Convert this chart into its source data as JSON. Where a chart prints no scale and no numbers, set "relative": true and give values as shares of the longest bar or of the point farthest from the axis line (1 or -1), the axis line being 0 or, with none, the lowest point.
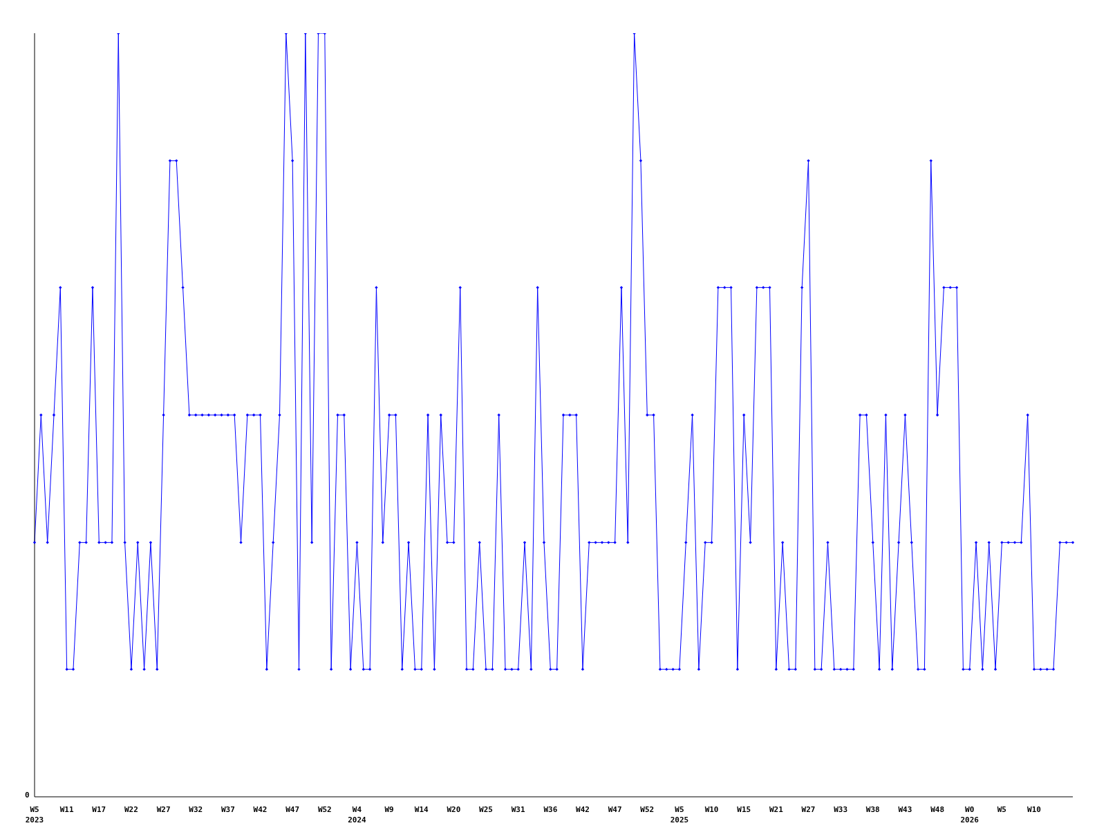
{
  "chart_data": {
    "type": "line",
    "relative": true,
    "annotations": [
      "0"
    ],
    "marker": "diamond",
    "line_style": "solid",
    "grid": false,
    "legend": false,
    "categories": [
      "W5\n2023",
      null,
      null,
      null,
      null,
      "W11",
      null,
      null,
      null,
      null,
      "W17",
      null,
      null,
      null,
      null,
      "W22",
      null,
      null,
      null,
      null,
      "W27",
      null,
      null,
      null,
      null,
      "W32",
      null,
      null,
      null,
      null,
      "W37",
      null,
      null,
      null,
      null,
      "W42",
      null,
      null,
      null,
      null,
      "W47",
      null,
      null,
      null,
      null,
      "W52",
      null,
      null,
      null,
      null,
      "W4\n2024",
      null,
      null,
      null,
      null,
      "W9",
      null,
      null,
      null,
      null,
      "W14",
      null,
      null,
      null,
      null,
      "W20",
      null,
      null,
      null,
      null,
      "W25",
      null,
      null,
      null,
      null,
      "W31",
      null,
      null,
      null,
      null,
      "W36",
      null,
      null,
      null,
      null,
      "W42",
      null,
      null,
      null,
      null,
      "W47",
      null,
      null,
      null,
      null,
      "W52",
      null,
      null,
      null,
      null,
      "W5\n2025",
      null,
      null,
      null,
      null,
      "W10",
      null,
      null,
      null,
      null,
      "W15",
      null,
      null,
      null,
      null,
      "W21",
      null,
      null,
      null,
      null,
      "W27",
      null,
      null,
      null,
      null,
      "W33",
      null,
      null,
      null,
      null,
      "W38",
      null,
      null,
      null,
      null,
      "W43",
      null,
      null,
      null,
      null,
      "W48",
      null,
      null,
      null,
      null,
      "W0\n2026",
      null,
      null,
      null,
      null,
      "W5",
      null,
      null,
      null,
      null,
      "W10",
      null,
      null,
      null,
      null,
      null,
      null
    ],
    "series": [
      {
        "color": "#0000ff",
        "values": [
          0.333,
          0.5,
          0.333,
          0.5,
          0.667,
          0.167,
          0.167,
          0.333,
          0.333,
          0.667,
          0.333,
          0.333,
          0.333,
          1,
          0.333,
          0.167,
          0.333,
          0.167,
          0.333,
          0.167,
          0.5,
          0.833,
          0.833,
          0.667,
          0.5,
          0.5,
          0.5,
          0.5,
          0.5,
          0.5,
          0.5,
          0.5,
          0.333,
          0.5,
          0.5,
          0.5,
          0.167,
          0.333,
          0.5,
          1,
          0.833,
          0.167,
          1,
          0.333,
          1,
          1,
          0.167,
          0.5,
          0.5,
          0.167,
          0.333,
          0.167,
          0.167,
          0.667,
          0.333,
          0.5,
          0.5,
          0.167,
          0.333,
          0.167,
          0.167,
          0.5,
          0.167,
          0.5,
          0.333,
          0.333,
          0.667,
          0.167,
          0.167,
          0.333,
          0.167,
          0.167,
          0.5,
          0.167,
          0.167,
          0.167,
          0.333,
          0.167,
          0.667,
          0.333,
          0.167,
          0.167,
          0.5,
          0.5,
          0.5,
          0.167,
          0.333,
          0.333,
          0.333,
          0.333,
          0.333,
          0.667,
          0.333,
          1,
          0.833,
          0.5,
          0.5,
          0.167,
          0.167,
          0.167,
          0.167,
          0.333,
          0.5,
          0.167,
          0.333,
          0.333,
          0.667,
          0.667,
          0.667,
          0.167,
          0.5,
          0.333,
          0.667,
          0.667,
          0.667,
          0.167,
          0.333,
          0.167,
          0.167,
          0.667,
          0.833,
          0.167,
          0.167,
          0.333,
          0.167,
          0.167,
          0.167,
          0.167,
          0.5,
          0.5,
          0.333,
          0.167,
          0.5,
          0.167,
          0.333,
          0.5,
          0.333,
          0.167,
          0.167,
          0.833,
          0.5,
          0.667,
          0.667,
          0.667,
          0.167,
          0.167,
          0.333,
          0.167,
          0.333,
          0.167,
          0.333,
          0.333,
          0.333,
          0.333,
          0.5,
          0.167,
          0.167,
          0.167,
          0.167,
          0.333,
          0.333,
          0.333
        ]
      }
    ]
  }
}
